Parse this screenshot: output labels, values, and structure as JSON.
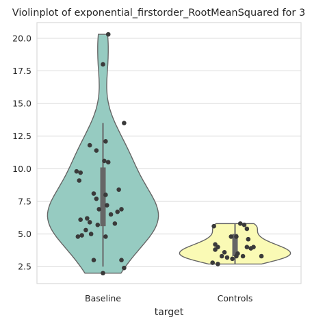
{
  "chart_data": {
    "type": "violin",
    "title": "Violinplot of exponential_firstorder_RootMeanSquared for 3",
    "xlabel": "target",
    "ylabel": "",
    "categories": [
      "Baseline",
      "Controls"
    ],
    "ylim": [
      1.2,
      21.2
    ],
    "yticks": [
      2.5,
      5.0,
      7.5,
      10.0,
      12.5,
      15.0,
      17.5,
      20.0
    ],
    "ytick_labels": [
      "2.5",
      "5.0",
      "7.5",
      "10.0",
      "12.5",
      "15.0",
      "17.5",
      "20.0"
    ],
    "grid": "horizontal",
    "colors": {
      "Baseline": "#96cbc1",
      "Controls": "#fafab5",
      "outline": "#666666",
      "points": "#3a3a3a",
      "grid": "#d9d9d9",
      "box": "#666666"
    },
    "violins": [
      {
        "category": "Baseline",
        "min": 2.0,
        "max": 20.3,
        "q1": 5.6,
        "median": 8.0,
        "q3": 10.1,
        "whisker_low": 2.5,
        "whisker_high": 13.5,
        "points": [
          [
            0.04,
            20.3
          ],
          [
            0.0,
            18.0
          ],
          [
            0.16,
            13.5
          ],
          [
            -0.1,
            11.8
          ],
          [
            0.02,
            12.1
          ],
          [
            -0.05,
            11.4
          ],
          [
            0.04,
            10.5
          ],
          [
            0.01,
            10.6
          ],
          [
            -0.2,
            9.8
          ],
          [
            -0.17,
            9.7
          ],
          [
            -0.18,
            9.1
          ],
          [
            0.12,
            8.4
          ],
          [
            -0.07,
            8.1
          ],
          [
            0.02,
            8.0
          ],
          [
            -0.05,
            7.7
          ],
          [
            0.03,
            7.2
          ],
          [
            -0.03,
            6.9
          ],
          [
            0.14,
            6.9
          ],
          [
            0.11,
            6.7
          ],
          [
            0.06,
            6.5
          ],
          [
            -0.17,
            6.1
          ],
          [
            -0.12,
            6.2
          ],
          [
            -0.1,
            5.9
          ],
          [
            0.09,
            5.8
          ],
          [
            -0.04,
            5.7
          ],
          [
            -0.13,
            5.3
          ],
          [
            -0.16,
            4.9
          ],
          [
            -0.09,
            5.0
          ],
          [
            -0.19,
            4.8
          ],
          [
            0.02,
            4.8
          ],
          [
            -0.07,
            3.0
          ],
          [
            0.14,
            3.0
          ],
          [
            0.16,
            2.4
          ],
          [
            0.0,
            2.0
          ]
        ]
      },
      {
        "category": "Controls",
        "min": 2.7,
        "max": 5.8,
        "q1": 3.3,
        "median": 4.0,
        "q3": 5.0,
        "whisker_low": 2.7,
        "whisker_high": 5.8,
        "points": [
          [
            0.04,
            5.8
          ],
          [
            0.07,
            5.7
          ],
          [
            -0.16,
            5.6
          ],
          [
            0.09,
            5.4
          ],
          [
            -0.03,
            4.8
          ],
          [
            0.01,
            4.8
          ],
          [
            0.1,
            4.6
          ],
          [
            -0.15,
            4.2
          ],
          [
            -0.13,
            4.0
          ],
          [
            0.09,
            4.0
          ],
          [
            0.14,
            4.0
          ],
          [
            0.12,
            3.9
          ],
          [
            -0.15,
            3.8
          ],
          [
            -0.08,
            3.6
          ],
          [
            0.02,
            3.5
          ],
          [
            -0.1,
            3.3
          ],
          [
            0.06,
            3.3
          ],
          [
            0.01,
            3.3
          ],
          [
            0.2,
            3.3
          ],
          [
            -0.06,
            3.2
          ],
          [
            -0.02,
            3.1
          ],
          [
            -0.17,
            2.8
          ],
          [
            -0.13,
            2.7
          ]
        ]
      }
    ]
  }
}
